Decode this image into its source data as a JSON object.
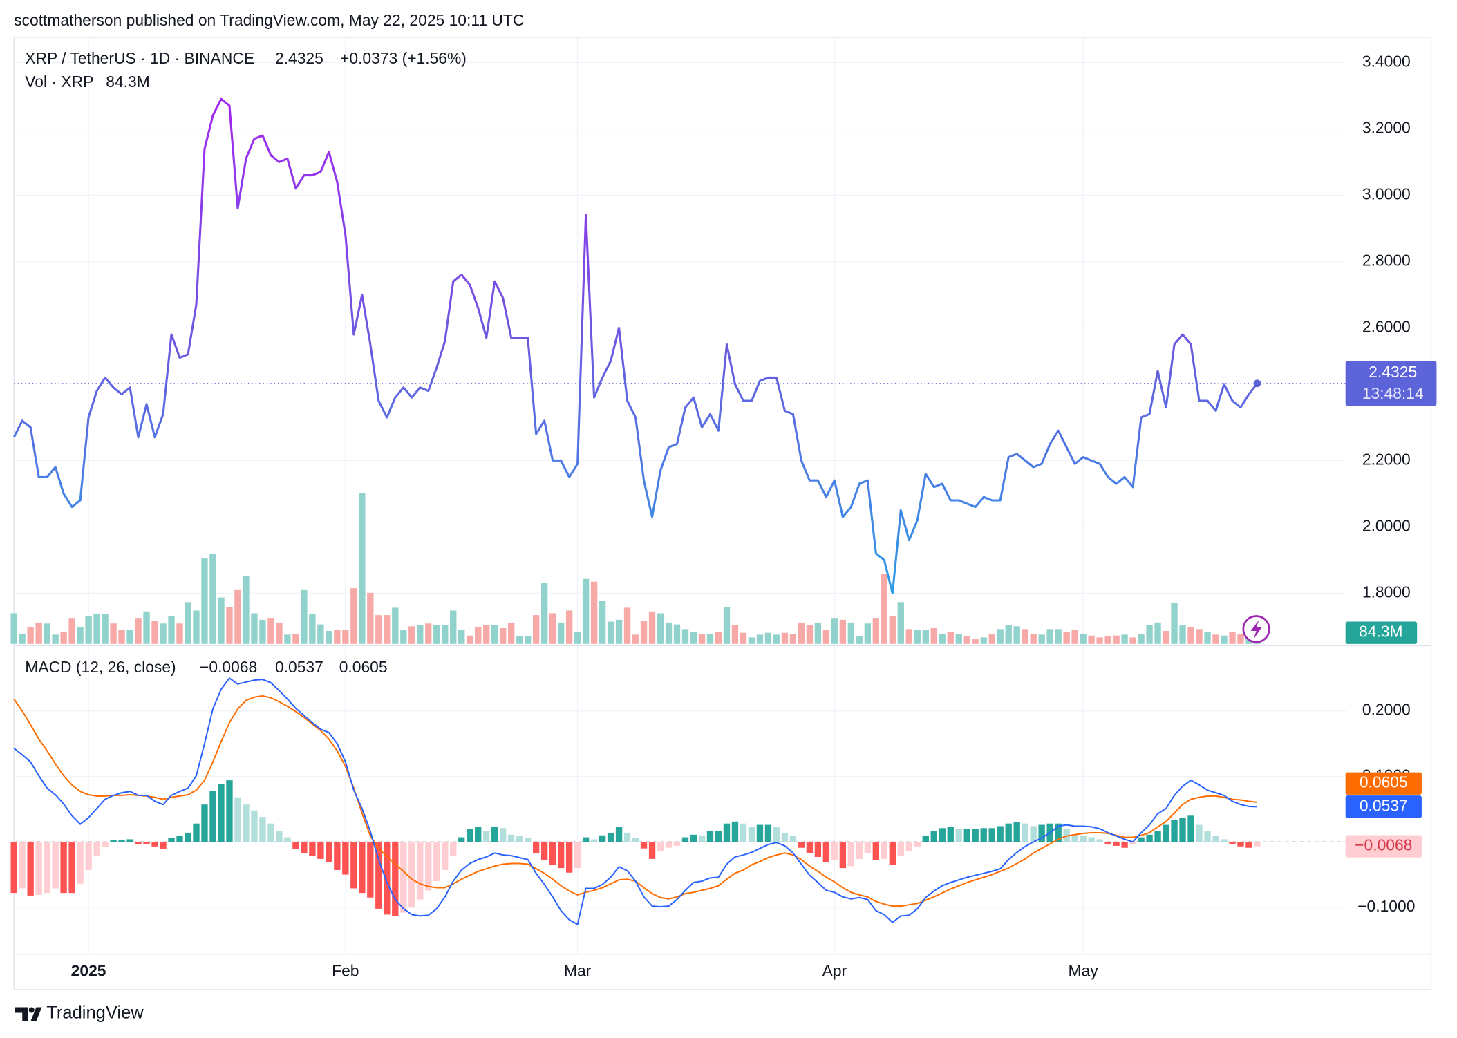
{
  "header": {
    "byline": "scottmatherson published on TradingView.com, May 22, 2025 10:11 UTC"
  },
  "footer": {
    "brand": "TradingView"
  },
  "chart_data": [
    {
      "type": "line",
      "change": "+0.0373 (+1.56%)",
      "countdown": "13:48:14",
      "badge_color": "#5d63d9",
      "series": [
        {
          "name": "XRP / TetherUS · 1D · BINANCE",
          "last_label": "2.4325",
          "label_color": "#5d63d9",
          "gradient": [
            "#a526f2",
            "#6a5ae0",
            "#2aa0e8"
          ],
          "values": [
            2.27,
            2.32,
            2.3,
            2.15,
            2.15,
            2.18,
            2.1,
            2.06,
            2.08,
            2.33,
            2.41,
            2.45,
            2.42,
            2.4,
            2.42,
            2.27,
            2.37,
            2.27,
            2.34,
            2.58,
            2.51,
            2.52,
            2.67,
            3.14,
            3.24,
            3.29,
            3.27,
            2.96,
            3.11,
            3.17,
            3.18,
            3.12,
            3.1,
            3.11,
            3.02,
            3.06,
            3.06,
            3.07,
            3.13,
            3.04,
            2.88,
            2.58,
            2.7,
            2.55,
            2.38,
            2.33,
            2.39,
            2.42,
            2.39,
            2.42,
            2.41,
            2.48,
            2.56,
            2.74,
            2.76,
            2.73,
            2.66,
            2.57,
            2.74,
            2.69,
            2.57,
            2.57,
            2.57,
            2.28,
            2.32,
            2.2,
            2.2,
            2.15,
            2.19,
            2.94,
            2.39,
            2.45,
            2.5,
            2.6,
            2.38,
            2.33,
            2.14,
            2.03,
            2.17,
            2.24,
            2.25,
            2.36,
            2.39,
            2.3,
            2.34,
            2.29,
            2.55,
            2.43,
            2.38,
            2.38,
            2.44,
            2.45,
            2.45,
            2.35,
            2.34,
            2.2,
            2.14,
            2.14,
            2.09,
            2.14,
            2.03,
            2.06,
            2.13,
            2.14,
            1.92,
            1.9,
            1.8,
            2.05,
            1.96,
            2.02,
            2.16,
            2.12,
            2.13,
            2.08,
            2.08,
            2.07,
            2.06,
            2.09,
            2.08,
            2.08,
            2.21,
            2.22,
            2.2,
            2.18,
            2.19,
            2.25,
            2.29,
            2.24,
            2.19,
            2.21,
            2.2,
            2.19,
            2.15,
            2.13,
            2.15,
            2.12,
            2.33,
            2.34,
            2.47,
            2.36,
            2.55,
            2.58,
            2.55,
            2.38,
            2.38,
            2.35,
            2.43,
            2.38,
            2.36,
            2.4,
            2.4325
          ]
        }
      ],
      "ylim": [
        1.647,
        3.476
      ],
      "yticks": [
        {
          "value": 3.4,
          "label": "3.4000"
        },
        {
          "value": 3.2,
          "label": "3.2000"
        },
        {
          "value": 3.0,
          "label": "3.0000"
        },
        {
          "value": 2.8,
          "label": "2.8000"
        },
        {
          "value": 2.6,
          "label": "2.6000"
        },
        {
          "value": 2.2,
          "label": "2.2000"
        },
        {
          "value": 2.0,
          "label": "2.0000"
        },
        {
          "value": 1.8,
          "label": "1.8000"
        }
      ],
      "grid": true
    },
    {
      "type": "bar",
      "up_color": "#92d2cc",
      "down_color": "#f6a9a6",
      "badge_color": "#26a69a",
      "series": [
        {
          "name": "Vol · XRP",
          "last_label": "84.3M",
          "label_color": "#26a69a",
          "values": [
            231,
            77,
            126,
            161,
            154,
            70,
            91,
            196,
            126,
            210,
            224,
            224,
            154,
            105,
            105,
            196,
            245,
            175,
            154,
            210,
            154,
            315,
            252,
            644,
            679,
            350,
            280,
            406,
            511,
            231,
            182,
            196,
            161,
            70,
            77,
            406,
            224,
            147,
            98,
            105,
            105,
            420,
            1134,
            385,
            217,
            217,
            273,
            105,
            133,
            140,
            154,
            140,
            140,
            252,
            105,
            63,
            126,
            140,
            140,
            119,
            161,
            56,
            56,
            217,
            462,
            231,
            161,
            252,
            91,
            490,
            469,
            322,
            168,
            182,
            273,
            70,
            175,
            245,
            231,
            161,
            147,
            112,
            91,
            77,
            77,
            91,
            280,
            140,
            84,
            49,
            70,
            84,
            70,
            84,
            77,
            161,
            140,
            161,
            105,
            196,
            182,
            161,
            56,
            154,
            196,
            525,
            210,
            315,
            112,
            105,
            105,
            119,
            77,
            91,
            77,
            56,
            35,
            49,
            77,
            112,
            140,
            133,
            112,
            77,
            70,
            112,
            112,
            91,
            105,
            77,
            63,
            49,
            56,
            63,
            70,
            49,
            77,
            140,
            161,
            98,
            308,
            140,
            126,
            112,
            91,
            70,
            63,
            91,
            77,
            91,
            84.3
          ]
        }
      ]
    },
    {
      "type": "macd",
      "title": "MACD (12, 26, close)",
      "categories": [
        null,
        null,
        null,
        null,
        null,
        null,
        null,
        null,
        null,
        "2025",
        null,
        null,
        null,
        null,
        null,
        null,
        null,
        null,
        null,
        null,
        null,
        null,
        null,
        null,
        null,
        null,
        null,
        null,
        null,
        null,
        null,
        null,
        null,
        null,
        null,
        null,
        null,
        null,
        null,
        null,
        "Feb",
        null,
        null,
        null,
        null,
        null,
        null,
        null,
        null,
        null,
        null,
        null,
        null,
        null,
        null,
        null,
        null,
        null,
        null,
        null,
        null,
        null,
        null,
        null,
        null,
        null,
        null,
        null,
        "Mar",
        null,
        null,
        null,
        null,
        null,
        null,
        null,
        null,
        null,
        null,
        null,
        null,
        null,
        null,
        null,
        null,
        null,
        null,
        null,
        null,
        null,
        null,
        null,
        null,
        null,
        null,
        null,
        null,
        null,
        null,
        "Apr",
        null,
        null,
        null,
        null,
        null,
        null,
        null,
        null,
        null,
        null,
        null,
        null,
        null,
        null,
        null,
        null,
        null,
        null,
        null,
        null,
        null,
        null,
        null,
        null,
        null,
        null,
        null,
        null,
        null,
        "May",
        null,
        null,
        null,
        null,
        null,
        null,
        null,
        null,
        null,
        null,
        null,
        null,
        null,
        null,
        null,
        null,
        null,
        null,
        null,
        null,
        null
      ],
      "histogram": {
        "last_label": "−0.0068",
        "colors": {
          "pos_up": "#26a69a",
          "pos_down": "#b2dfdb",
          "neg_down": "#ff5252",
          "neg_up": "#ffcdd2"
        },
        "label_text_color": "#d6394a",
        "values": [
          -0.078,
          -0.071,
          -0.082,
          -0.081,
          -0.078,
          -0.071,
          -0.078,
          -0.078,
          -0.064,
          -0.043,
          -0.021,
          -0.007,
          0.003,
          0.003,
          0.004,
          -0.003,
          -0.004,
          -0.007,
          -0.011,
          0.006,
          0.009,
          0.014,
          0.028,
          0.057,
          0.078,
          0.088,
          0.094,
          0.068,
          0.057,
          0.048,
          0.038,
          0.028,
          0.017,
          0.007,
          -0.011,
          -0.017,
          -0.021,
          -0.026,
          -0.031,
          -0.043,
          -0.05,
          -0.071,
          -0.078,
          -0.085,
          -0.102,
          -0.111,
          -0.113,
          -0.108,
          -0.099,
          -0.088,
          -0.074,
          -0.06,
          -0.043,
          -0.021,
          0.007,
          0.02,
          0.023,
          0.017,
          0.023,
          0.021,
          0.011,
          0.009,
          0.006,
          -0.017,
          -0.028,
          -0.035,
          -0.04,
          -0.047,
          -0.04,
          0.007,
          0.004,
          0.01,
          0.014,
          0.023,
          0.014,
          0.006,
          -0.01,
          -0.026,
          -0.014,
          -0.009,
          -0.006,
          0.007,
          0.011,
          0.01,
          0.017,
          0.017,
          0.028,
          0.031,
          0.028,
          0.023,
          0.026,
          0.026,
          0.023,
          0.014,
          0.009,
          -0.009,
          -0.017,
          -0.023,
          -0.031,
          -0.028,
          -0.04,
          -0.037,
          -0.026,
          -0.017,
          -0.028,
          -0.026,
          -0.035,
          -0.021,
          -0.014,
          -0.007,
          0.009,
          0.017,
          0.021,
          0.023,
          0.02,
          0.02,
          0.02,
          0.021,
          0.021,
          0.024,
          0.028,
          0.03,
          0.028,
          0.024,
          0.026,
          0.028,
          0.028,
          0.02,
          0.011,
          0.009,
          0.007,
          0.004,
          -0.003,
          -0.006,
          -0.009,
          -0.004,
          0.007,
          0.011,
          0.017,
          0.026,
          0.034,
          0.037,
          0.04,
          0.026,
          0.017,
          0.009,
          0.004,
          -0.004,
          -0.007,
          -0.009,
          -0.0068
        ]
      },
      "macd": {
        "color": "#2962ff",
        "last_label": "0.0537",
        "values": [
          0.143,
          0.133,
          0.122,
          0.101,
          0.082,
          0.072,
          0.058,
          0.04,
          0.027,
          0.037,
          0.051,
          0.065,
          0.071,
          0.075,
          0.077,
          0.071,
          0.071,
          0.062,
          0.057,
          0.071,
          0.077,
          0.082,
          0.101,
          0.15,
          0.203,
          0.233,
          0.25,
          0.241,
          0.244,
          0.247,
          0.248,
          0.243,
          0.231,
          0.218,
          0.204,
          0.193,
          0.182,
          0.172,
          0.167,
          0.15,
          0.122,
          0.079,
          0.051,
          0.016,
          -0.027,
          -0.062,
          -0.088,
          -0.102,
          -0.111,
          -0.113,
          -0.112,
          -0.102,
          -0.084,
          -0.06,
          -0.043,
          -0.033,
          -0.027,
          -0.023,
          -0.017,
          -0.02,
          -0.021,
          -0.024,
          -0.027,
          -0.048,
          -0.065,
          -0.084,
          -0.105,
          -0.119,
          -0.126,
          -0.071,
          -0.071,
          -0.065,
          -0.054,
          -0.038,
          -0.044,
          -0.06,
          -0.084,
          -0.098,
          -0.099,
          -0.098,
          -0.088,
          -0.074,
          -0.062,
          -0.06,
          -0.055,
          -0.054,
          -0.034,
          -0.023,
          -0.02,
          -0.016,
          -0.01,
          -0.004,
          -0.001,
          -0.006,
          -0.017,
          -0.034,
          -0.051,
          -0.062,
          -0.074,
          -0.077,
          -0.084,
          -0.087,
          -0.085,
          -0.088,
          -0.105,
          -0.111,
          -0.123,
          -0.113,
          -0.112,
          -0.102,
          -0.085,
          -0.075,
          -0.067,
          -0.062,
          -0.058,
          -0.054,
          -0.051,
          -0.048,
          -0.045,
          -0.041,
          -0.027,
          -0.016,
          -0.007,
          0,
          0.006,
          0.014,
          0.024,
          0.026,
          0.024,
          0.024,
          0.023,
          0.02,
          0.014,
          0.009,
          0.004,
          0,
          0.014,
          0.026,
          0.043,
          0.051,
          0.071,
          0.085,
          0.094,
          0.087,
          0.079,
          0.075,
          0.071,
          0.062,
          0.057,
          0.054,
          0.0537
        ]
      },
      "signal": {
        "color": "#ff6d00",
        "last_label": "0.0605",
        "values": [
          0.218,
          0.2,
          0.179,
          0.157,
          0.139,
          0.119,
          0.101,
          0.087,
          0.077,
          0.072,
          0.07,
          0.07,
          0.071,
          0.071,
          0.072,
          0.071,
          0.07,
          0.068,
          0.065,
          0.068,
          0.07,
          0.072,
          0.079,
          0.094,
          0.122,
          0.153,
          0.182,
          0.203,
          0.216,
          0.221,
          0.223,
          0.22,
          0.214,
          0.207,
          0.199,
          0.19,
          0.18,
          0.17,
          0.157,
          0.139,
          0.115,
          0.082,
          0.044,
          0.009,
          -0.01,
          -0.022,
          -0.034,
          -0.045,
          -0.057,
          -0.064,
          -0.068,
          -0.07,
          -0.07,
          -0.064,
          -0.057,
          -0.051,
          -0.045,
          -0.041,
          -0.037,
          -0.034,
          -0.033,
          -0.033,
          -0.034,
          -0.041,
          -0.048,
          -0.057,
          -0.067,
          -0.075,
          -0.081,
          -0.077,
          -0.074,
          -0.07,
          -0.064,
          -0.058,
          -0.057,
          -0.06,
          -0.07,
          -0.079,
          -0.085,
          -0.087,
          -0.084,
          -0.079,
          -0.077,
          -0.074,
          -0.071,
          -0.067,
          -0.057,
          -0.048,
          -0.043,
          -0.035,
          -0.03,
          -0.024,
          -0.02,
          -0.017,
          -0.02,
          -0.027,
          -0.037,
          -0.045,
          -0.054,
          -0.061,
          -0.07,
          -0.077,
          -0.081,
          -0.084,
          -0.091,
          -0.095,
          -0.098,
          -0.098,
          -0.096,
          -0.094,
          -0.089,
          -0.084,
          -0.078,
          -0.072,
          -0.067,
          -0.062,
          -0.058,
          -0.054,
          -0.05,
          -0.045,
          -0.04,
          -0.033,
          -0.026,
          -0.017,
          -0.01,
          -0.003,
          0.004,
          0.009,
          0.011,
          0.013,
          0.014,
          0.014,
          0.013,
          0.01,
          0.007,
          0.007,
          0.01,
          0.014,
          0.023,
          0.031,
          0.044,
          0.057,
          0.065,
          0.068,
          0.07,
          0.07,
          0.068,
          0.065,
          0.064,
          0.062,
          0.0605
        ]
      },
      "ylim": [
        -0.1716,
        0.2965
      ],
      "yticks": [
        {
          "value": 0.2,
          "label": "0.2000"
        },
        {
          "value": 0.1,
          "label": "0.1000"
        },
        {
          "value": -0.1,
          "label": "−0.1000"
        }
      ],
      "grid": true
    }
  ]
}
